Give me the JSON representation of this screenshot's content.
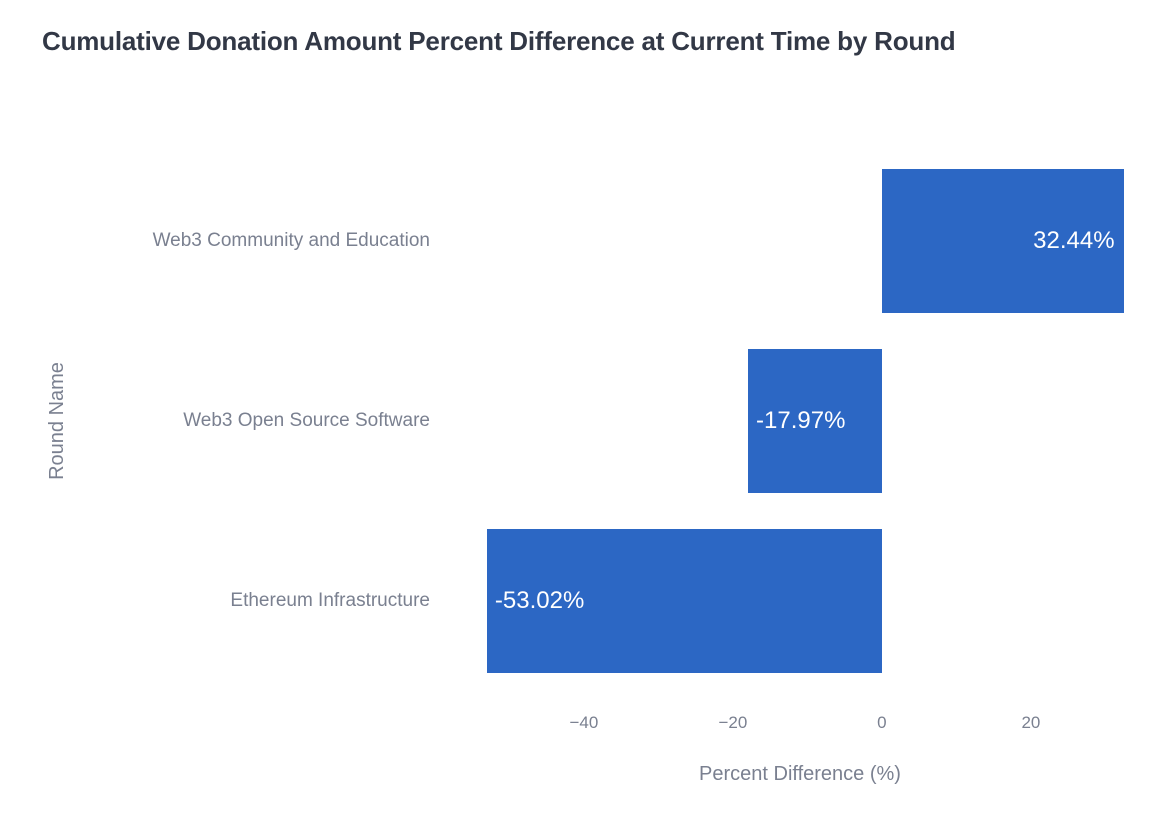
{
  "title": "Cumulative Donation Amount Percent Difference at Current Time by Round",
  "chart_data": {
    "type": "bar",
    "orientation": "horizontal",
    "title": "Cumulative Donation Amount Percent Difference at Current Time by Round",
    "categories": [
      "Web3 Community and Education",
      "Web3 Open Source Software",
      "Ethereum Infrastructure"
    ],
    "values": [
      32.44,
      -17.97,
      -53.02
    ],
    "value_labels": [
      "32.44%",
      "-17.97%",
      "-53.02%"
    ],
    "xlabel": "Percent Difference (%)",
    "ylabel": "Round Name",
    "xticks": [
      -40,
      -20,
      0,
      20
    ],
    "xtick_labels": [
      "−40",
      "−20",
      "0",
      "20"
    ],
    "xlim": [
      -56.9,
      33.3
    ],
    "grid": false,
    "legend": false,
    "background": "#ffffff"
  },
  "colors": {
    "bar": "#2c67c4",
    "bar_value_text": "#ffffff",
    "title_text": "#323846",
    "axis_text": "#7a8090"
  }
}
